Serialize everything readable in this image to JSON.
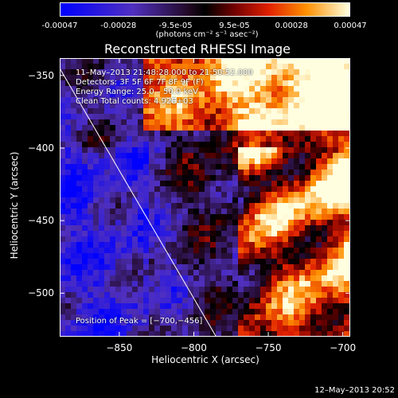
{
  "colorbar": {
    "tick_labels": [
      "-0.00047",
      "-0.00028",
      "-9.5e-05",
      "9.5e-05",
      "0.00028",
      "0.00047"
    ],
    "tick_values": [
      -0.00047,
      -0.00028,
      -9.5e-05,
      9.5e-05,
      0.00028,
      0.00047
    ],
    "range": [
      -0.00047,
      0.00047
    ],
    "units": "(photons cm⁻² s⁻¹ asec⁻²)"
  },
  "chart_data": {
    "type": "heatmap",
    "title": "Reconstructed RHESSI Image",
    "xlabel": "Heliocentric X (arcsec)",
    "ylabel": "Heliocentric Y (arcsec)",
    "xlim": [
      -890,
      -695
    ],
    "ylim": [
      -530,
      -338
    ],
    "x_ticks": [
      -850,
      -800,
      -750,
      -700
    ],
    "x_tick_labels": [
      "−850",
      "−800",
      "−750",
      "−700"
    ],
    "y_ticks": [
      -350,
      -400,
      -450,
      -500
    ],
    "y_tick_labels": [
      "−350",
      "−400",
      "−450",
      "−500"
    ],
    "limb_line": [
      [
        -890,
        -345
      ],
      [
        -785,
        -530
      ]
    ],
    "peak_position": [
      -700,
      -456
    ],
    "annotations": [
      "11–May–2013 21:48:28.000 to 21:50:52.000",
      "Detectors: 3F 5F 6F 7F 8F 9F (F)",
      "Energy Range: 25.0 – 50.0 keV",
      "Clean    Total counts: 4.92E+03",
      "Position of Peak = [−700,−456]"
    ]
  },
  "timestamp": "12–May–2013 20:52",
  "colors": {
    "low": "#0000ff",
    "mid_low": "#6040c0",
    "mid": "#000000",
    "high_red": "#c00000",
    "high_orange": "#ff8000",
    "high_white": "#ffffe0"
  }
}
